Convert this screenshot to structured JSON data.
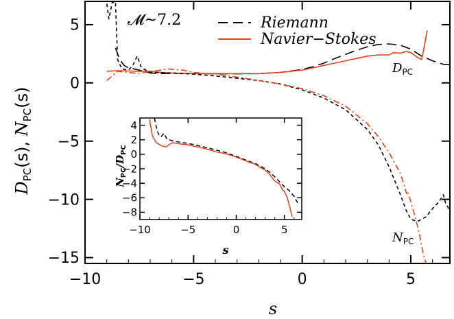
{
  "colors": {
    "riemann": "#000000",
    "navier": "#e0401a",
    "axes": "#000000",
    "background": "#ffffff"
  },
  "chart_data": [
    {
      "type": "line",
      "annotation": "𝓜~7.2",
      "xlabel": "s",
      "ylabel": {
        "d": "D",
        "d_sub": "PC",
        "mid": "(s), ",
        "n": "N",
        "n_sub": "PC",
        "end": "(s)"
      },
      "xlim": [
        -10,
        6.8
      ],
      "ylim": [
        -15.5,
        7
      ],
      "xticks": [
        -10,
        -5,
        0,
        5
      ],
      "yticks": [
        5,
        0,
        -5,
        -10,
        -15
      ],
      "xtick_labels": [
        "−10",
        "−5",
        "0",
        "5"
      ],
      "ytick_labels": [
        "5",
        "0",
        "−5",
        "−10",
        "−15"
      ],
      "legend": {
        "placement": "top",
        "entries": [
          {
            "label": "Riemann",
            "color": "#000000",
            "style": "dashed"
          },
          {
            "label": "Navier−Stokes",
            "color": "#e0401a",
            "style": "solid"
          }
        ]
      },
      "curve_labels": {
        "d": {
          "main": "D",
          "sub": "PC"
        },
        "n": {
          "main": "N",
          "sub": "PC"
        }
      },
      "series": [
        {
          "id": "riemann_D",
          "style": "longdash",
          "color": "#000000",
          "points": [
            [
              -8.6,
              3.0
            ],
            [
              -8.4,
              2.0
            ],
            [
              -8.2,
              1.5
            ],
            [
              -8.0,
              1.3
            ],
            [
              -7.5,
              1.1
            ],
            [
              -7.0,
              0.85
            ],
            [
              -6.5,
              0.8
            ],
            [
              -6.0,
              0.82
            ],
            [
              -5.0,
              0.8
            ],
            [
              -4.0,
              0.78
            ],
            [
              -3.0,
              0.78
            ],
            [
              -2.0,
              0.8
            ],
            [
              -1.0,
              0.9
            ],
            [
              0.0,
              1.15
            ],
            [
              0.5,
              1.4
            ],
            [
              1.0,
              1.7
            ],
            [
              1.5,
              2.1
            ],
            [
              2.0,
              2.45
            ],
            [
              2.5,
              2.8
            ],
            [
              3.0,
              3.1
            ],
            [
              3.5,
              3.3
            ],
            [
              4.0,
              3.35
            ],
            [
              4.5,
              3.25
            ],
            [
              5.0,
              2.9
            ],
            [
              5.5,
              2.3
            ],
            [
              6.0,
              1.9
            ],
            [
              6.5,
              1.6
            ],
            [
              6.8,
              1.55
            ]
          ]
        },
        {
          "id": "navier_D",
          "style": "solid",
          "color": "#e0401a",
          "points": [
            [
              -9.0,
              1.0
            ],
            [
              -8.5,
              1.05
            ],
            [
              -8.0,
              1.02
            ],
            [
              -7.6,
              1.0
            ],
            [
              -7.0,
              1.0
            ],
            [
              -6.5,
              0.9
            ],
            [
              -6.0,
              0.85
            ],
            [
              -5.5,
              0.82
            ],
            [
              -5.0,
              0.8
            ],
            [
              -4.0,
              0.8
            ],
            [
              -3.0,
              0.8
            ],
            [
              -2.0,
              0.8
            ],
            [
              -1.0,
              0.9
            ],
            [
              0.0,
              1.1
            ],
            [
              0.5,
              1.3
            ],
            [
              1.0,
              1.5
            ],
            [
              1.5,
              1.7
            ],
            [
              2.0,
              1.9
            ],
            [
              2.5,
              2.1
            ],
            [
              3.0,
              2.3
            ],
            [
              3.5,
              2.4
            ],
            [
              4.0,
              2.4
            ],
            [
              4.2,
              2.6
            ],
            [
              4.5,
              2.55
            ],
            [
              4.8,
              2.7
            ],
            [
              5.0,
              2.6
            ],
            [
              5.3,
              2.2
            ],
            [
              5.5,
              2.0
            ],
            [
              5.6,
              2.9
            ],
            [
              5.75,
              4.5
            ]
          ]
        },
        {
          "id": "riemann_N",
          "style": "shortdash",
          "color": "#000000",
          "points": [
            [
              -9.0,
              6.8
            ],
            [
              -8.9,
              5.5
            ],
            [
              -8.75,
              6.9
            ],
            [
              -8.6,
              7.0
            ],
            [
              -8.5,
              2.0
            ],
            [
              -8.3,
              1.2
            ],
            [
              -8.0,
              1.1
            ],
            [
              -7.8,
              1.5
            ],
            [
              -7.6,
              2.3
            ],
            [
              -7.4,
              1.3
            ],
            [
              -7.0,
              0.9
            ],
            [
              -6.0,
              0.85
            ],
            [
              -5.0,
              0.75
            ],
            [
              -4.0,
              0.6
            ],
            [
              -3.0,
              0.4
            ],
            [
              -2.0,
              0.2
            ],
            [
              -1.0,
              -0.1
            ],
            [
              0.0,
              -0.6
            ],
            [
              1.0,
              -1.3
            ],
            [
              2.0,
              -2.3
            ],
            [
              3.0,
              -4.0
            ],
            [
              3.5,
              -5.3
            ],
            [
              4.0,
              -7.2
            ],
            [
              4.5,
              -9.5
            ],
            [
              4.8,
              -11.0
            ],
            [
              5.0,
              -11.7
            ],
            [
              5.3,
              -11.9
            ],
            [
              5.7,
              -11.5
            ],
            [
              6.0,
              -10.8
            ],
            [
              6.3,
              -10.2
            ],
            [
              6.5,
              -9.6
            ],
            [
              6.6,
              -10.3
            ],
            [
              6.8,
              -11.0
            ]
          ]
        },
        {
          "id": "navier_N",
          "style": "dashdot",
          "color": "#e0401a",
          "points": [
            [
              -9.0,
              0.2
            ],
            [
              -8.5,
              1.0
            ],
            [
              -8.0,
              0.9
            ],
            [
              -7.5,
              0.8
            ],
            [
              -7.0,
              1.0
            ],
            [
              -6.5,
              1.1
            ],
            [
              -6.2,
              1.2
            ],
            [
              -5.5,
              1.1
            ],
            [
              -5.0,
              0.9
            ],
            [
              -4.0,
              0.75
            ],
            [
              -3.0,
              0.5
            ],
            [
              -2.0,
              0.2
            ],
            [
              -1.0,
              -0.1
            ],
            [
              0.0,
              -0.5
            ],
            [
              1.0,
              -1.1
            ],
            [
              2.0,
              -2.0
            ],
            [
              3.0,
              -3.5
            ],
            [
              3.5,
              -4.6
            ],
            [
              4.0,
              -6.0
            ],
            [
              4.5,
              -7.7
            ],
            [
              4.7,
              -8.8
            ],
            [
              4.8,
              -9.5
            ],
            [
              4.85,
              -9.3
            ],
            [
              5.0,
              -10.2
            ],
            [
              5.2,
              -11.5
            ],
            [
              5.4,
              -13.0
            ],
            [
              5.55,
              -14.5
            ],
            [
              5.7,
              -15.5
            ]
          ]
        }
      ]
    },
    {
      "type": "line",
      "xlabel": "s",
      "ylabel": {
        "n": "N",
        "n_sub": "PC",
        "slash": "/",
        "d": "D",
        "d_sub": "PC"
      },
      "xlim": [
        -10,
        6.8
      ],
      "ylim": [
        -9,
        5
      ],
      "xticks": [
        -10,
        -5,
        0,
        5
      ],
      "yticks": [
        4,
        2,
        0,
        -2,
        -4,
        -6,
        -8
      ],
      "xtick_labels": [
        "−10",
        "−5",
        "0",
        "5"
      ],
      "ytick_labels": [
        "4",
        "2",
        "0",
        "−2",
        "−4",
        "−6",
        "−8"
      ],
      "series": [
        {
          "id": "inset_riemann",
          "style": "dashed",
          "color": "#000000",
          "points": [
            [
              -8.5,
              5.0
            ],
            [
              -8.2,
              3.2
            ],
            [
              -8.0,
              2.6
            ],
            [
              -7.8,
              2.4
            ],
            [
              -7.5,
              2.9
            ],
            [
              -7.2,
              2.1
            ],
            [
              -6.5,
              1.8
            ],
            [
              -5.0,
              1.5
            ],
            [
              -3.0,
              0.9
            ],
            [
              -1.0,
              0.2
            ],
            [
              0.0,
              -0.3
            ],
            [
              1.0,
              -0.8
            ],
            [
              2.0,
              -1.3
            ],
            [
              3.0,
              -2.0
            ],
            [
              3.5,
              -2.5
            ],
            [
              4.0,
              -3.1
            ],
            [
              4.5,
              -3.8
            ],
            [
              5.0,
              -4.5
            ],
            [
              5.5,
              -5.0
            ],
            [
              6.0,
              -5.8
            ],
            [
              6.5,
              -7.0
            ]
          ]
        },
        {
          "id": "inset_navier",
          "style": "solid",
          "color": "#e0401a",
          "points": [
            [
              -9.0,
              4.8
            ],
            [
              -8.7,
              2.5
            ],
            [
              -8.3,
              1.6
            ],
            [
              -7.8,
              1.2
            ],
            [
              -7.3,
              1.0
            ],
            [
              -7.0,
              1.3
            ],
            [
              -6.6,
              1.6
            ],
            [
              -6.0,
              1.45
            ],
            [
              -5.0,
              1.3
            ],
            [
              -4.0,
              1.0
            ],
            [
              -3.0,
              0.7
            ],
            [
              -2.0,
              0.3
            ],
            [
              -1.0,
              0.05
            ],
            [
              0.0,
              -0.4
            ],
            [
              1.0,
              -0.9
            ],
            [
              2.0,
              -1.4
            ],
            [
              3.0,
              -2.2
            ],
            [
              3.5,
              -2.8
            ],
            [
              4.0,
              -3.7
            ],
            [
              4.5,
              -4.1
            ],
            [
              4.8,
              -4.9
            ],
            [
              5.0,
              -5.1
            ],
            [
              5.3,
              -6.0
            ],
            [
              5.6,
              -7.5
            ],
            [
              5.8,
              -8.6
            ]
          ]
        }
      ]
    }
  ]
}
